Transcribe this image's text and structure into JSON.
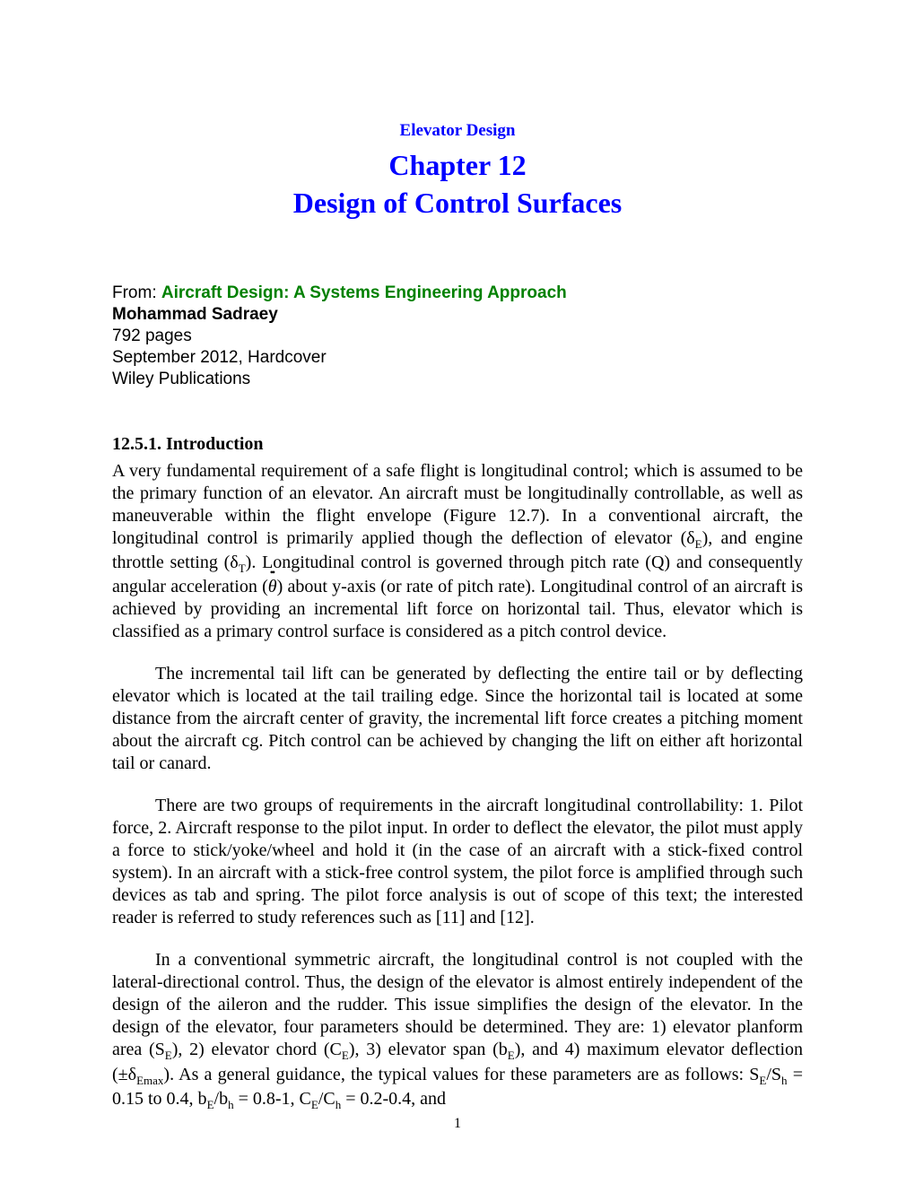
{
  "header": {
    "subtitle": "Elevator Design",
    "chapter_title": "Chapter 12",
    "chapter_subtitle": "Design of Control Surfaces"
  },
  "source": {
    "from_label": "From: ",
    "book_title": "Aircraft Design: A Systems Engineering Approach",
    "author": "Mohammad Sadraey",
    "pages": "792 pages",
    "date": "September 2012, Hardcover",
    "publisher": "Wiley Publications"
  },
  "section": {
    "heading": "12.5.1. Introduction"
  },
  "colors": {
    "heading_blue": "#0000ff",
    "book_green": "#008000",
    "text_black": "#000000",
    "background": "#ffffff"
  },
  "typography": {
    "body_font": "Times New Roman",
    "meta_font": "Arial",
    "subtitle_size": 19,
    "title_size": 32,
    "body_size": 20,
    "meta_size": 19
  },
  "page_number": "1",
  "paragraphs": {
    "p1_pre": "A very fundamental requirement of a safe flight is longitudinal control; which is assumed to be the primary function of an elevator. An aircraft must be longitudinally controllable, as well as maneuverable within the flight envelope (Figure 12.7). In a conventional aircraft, the longitudinal control is primarily applied though the deflection of elevator (δ",
    "p1_sub1": "E",
    "p1_mid1": "), and engine throttle setting (δ",
    "p1_sub2": "T",
    "p1_mid2": "). Longitudinal control is governed through pitch rate (Q) and consequently angular acceleration (",
    "p1_theta": "θ",
    "p1_post": ") about y-axis (or rate of pitch rate). Longitudinal control of an aircraft is achieved by providing an incremental lift force on horizontal tail. Thus, elevator which is classified as a primary control surface is considered as a pitch control device.",
    "p2": "The incremental tail lift can be generated by deflecting the entire tail or by deflecting elevator which is located at the tail trailing edge. Since the horizontal tail is located at some distance from the aircraft center of gravity, the incremental lift force creates a pitching moment about the aircraft cg. Pitch control can be achieved by changing the lift on either aft horizontal tail or canard.",
    "p3": "There are two groups of requirements in the aircraft longitudinal controllability: 1. Pilot force, 2. Aircraft response to the pilot input. In order to deflect the elevator, the pilot must apply a force to stick/yoke/wheel and hold it (in the case of an aircraft with a stick-fixed control system). In an aircraft with a stick-free control system, the pilot force is amplified through such devices as tab and spring. The pilot force analysis is out of scope of this text; the interested reader is referred to study references such as [11] and [12].",
    "p4_pre": "In a conventional symmetric aircraft, the longitudinal control is not coupled with the lateral-directional control. Thus, the design of the elevator is almost entirely independent of the design of the aileron and the rudder. This issue simplifies the design of the elevator. In the design of the elevator, four parameters should be determined. They are: 1) elevator planform area (S",
    "p4_s1": "E",
    "p4_m1": "), 2) elevator chord (C",
    "p4_s2": "E",
    "p4_m2": "), 3) elevator span (b",
    "p4_s3": "E",
    "p4_m3": "), and 4) maximum elevator deflection (",
    "p4_pm": "±",
    "p4_m3b": "δ",
    "p4_s4": "Emax",
    "p4_m4": "). As a general guidance, the typical values for these parameters are as follows: S",
    "p4_s5": "E",
    "p4_m5": "/S",
    "p4_s6": "h",
    "p4_m6": " = 0.15 to 0.4, b",
    "p4_s7": "E",
    "p4_m7": "/b",
    "p4_s8": "h",
    "p4_m8": " = 0.8-1, C",
    "p4_s9": "E",
    "p4_m9": "/C",
    "p4_s10": "h",
    "p4_m10": " = 0.2-0.4, and"
  }
}
